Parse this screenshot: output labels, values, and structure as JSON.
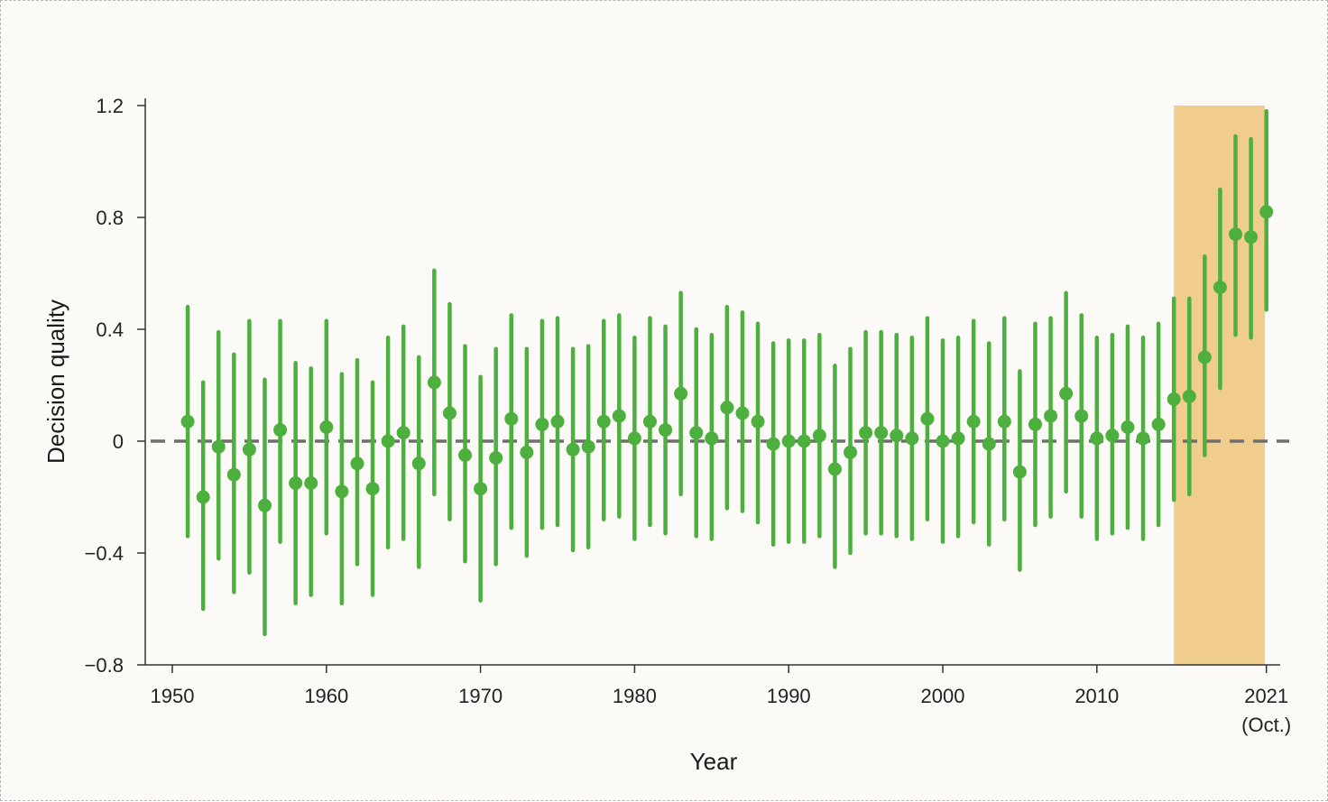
{
  "chart_data": {
    "type": "scatter",
    "title": "",
    "xlabel": "Year",
    "ylabel": "Decision quality",
    "xlim": [
      1948,
      2022.5
    ],
    "ylim": [
      -0.8,
      1.2
    ],
    "grid": false,
    "x_ticks": [
      {
        "value": 1950,
        "label": "1950"
      },
      {
        "value": 1960,
        "label": "1960"
      },
      {
        "value": 1970,
        "label": "1970"
      },
      {
        "value": 1980,
        "label": "1980"
      },
      {
        "value": 1990,
        "label": "1990"
      },
      {
        "value": 2000,
        "label": "2000"
      },
      {
        "value": 2010,
        "label": "2010"
      },
      {
        "value": 2021,
        "label": "2021",
        "sublabel": "(Oct.)"
      }
    ],
    "y_ticks": [
      {
        "value": 1.2,
        "label": "1.2"
      },
      {
        "value": 0.8,
        "label": "0.8"
      },
      {
        "value": 0.4,
        "label": "0.4"
      },
      {
        "value": 0,
        "label": "0"
      },
      {
        "value": -0.4,
        "label": "−0.4"
      },
      {
        "value": -0.8,
        "label": "−0.8"
      }
    ],
    "reference_line": {
      "y": 0,
      "style": "dashed",
      "color": "#6e6e6e"
    },
    "highlight_region": {
      "x_from": 2015,
      "x_to": 2020.9,
      "color": "#f0cd8c"
    },
    "marker_color": "#4caf3e",
    "series": [
      {
        "x": [
          1951,
          1952,
          1953,
          1954,
          1955,
          1956,
          1957,
          1958,
          1959,
          1960,
          1961,
          1962,
          1963,
          1964,
          1965,
          1966,
          1967,
          1968,
          1969,
          1970,
          1971,
          1972,
          1973,
          1974,
          1975,
          1976,
          1977,
          1978,
          1979,
          1980,
          1981,
          1982,
          1983,
          1984,
          1985,
          1986,
          1987,
          1988,
          1989,
          1990,
          1991,
          1992,
          1993,
          1994,
          1995,
          1996,
          1997,
          1998,
          1999,
          2000,
          2001,
          2002,
          2003,
          2004,
          2005,
          2006,
          2007,
          2008,
          2009,
          2010,
          2011,
          2012,
          2013,
          2014,
          2015,
          2016,
          2017,
          2018,
          2019,
          2020
        ],
        "y": [
          0.07,
          -0.2,
          -0.02,
          -0.12,
          -0.03,
          -0.23,
          0.04,
          -0.15,
          -0.15,
          0.05,
          -0.18,
          -0.08,
          -0.17,
          0.0,
          0.03,
          -0.08,
          0.21,
          0.1,
          -0.05,
          -0.17,
          -0.06,
          0.08,
          -0.04,
          0.06,
          0.07,
          -0.03,
          -0.02,
          0.07,
          0.09,
          0.01,
          0.07,
          0.04,
          0.17,
          0.03,
          0.01,
          0.12,
          0.1,
          0.07,
          -0.01,
          0.0,
          0.0,
          0.02,
          -0.1,
          -0.04,
          0.03,
          0.03,
          0.02,
          0.01,
          0.08,
          0.0,
          0.01,
          0.07,
          -0.01,
          0.07,
          -0.11,
          0.06,
          0.09,
          0.17,
          0.09,
          0.01,
          0.02,
          0.05,
          0.01,
          0.06,
          0.15,
          0.16,
          0.3,
          0.55,
          0.74,
          0.73
        ],
        "ci_low": [
          -0.34,
          -0.6,
          -0.42,
          -0.54,
          -0.47,
          -0.69,
          -0.36,
          -0.58,
          -0.55,
          -0.33,
          -0.58,
          -0.44,
          -0.55,
          -0.38,
          -0.35,
          -0.45,
          -0.19,
          -0.28,
          -0.43,
          -0.57,
          -0.44,
          -0.31,
          -0.41,
          -0.31,
          -0.3,
          -0.39,
          -0.38,
          -0.28,
          -0.27,
          -0.35,
          -0.3,
          -0.33,
          -0.19,
          -0.34,
          -0.35,
          -0.24,
          -0.25,
          -0.29,
          -0.37,
          -0.36,
          -0.36,
          -0.34,
          -0.45,
          -0.4,
          -0.33,
          -0.33,
          -0.34,
          -0.35,
          -0.28,
          -0.36,
          -0.34,
          -0.29,
          -0.37,
          -0.28,
          -0.46,
          -0.3,
          -0.27,
          -0.18,
          -0.27,
          -0.35,
          -0.33,
          -0.31,
          -0.35,
          -0.3,
          -0.21,
          -0.19,
          -0.05,
          0.19,
          0.38,
          0.37
        ],
        "ci_high": [
          0.48,
          0.21,
          0.39,
          0.31,
          0.43,
          0.22,
          0.43,
          0.28,
          0.26,
          0.43,
          0.24,
          0.29,
          0.21,
          0.37,
          0.41,
          0.3,
          0.61,
          0.49,
          0.34,
          0.23,
          0.33,
          0.45,
          0.33,
          0.43,
          0.44,
          0.33,
          0.34,
          0.43,
          0.45,
          0.37,
          0.44,
          0.41,
          0.53,
          0.4,
          0.38,
          0.48,
          0.46,
          0.42,
          0.35,
          0.36,
          0.36,
          0.38,
          0.27,
          0.33,
          0.39,
          0.39,
          0.38,
          0.37,
          0.44,
          0.36,
          0.37,
          0.43,
          0.35,
          0.44,
          0.25,
          0.42,
          0.44,
          0.53,
          0.45,
          0.37,
          0.38,
          0.41,
          0.37,
          0.42,
          0.51,
          0.51,
          0.66,
          0.9,
          1.09,
          1.08
        ]
      },
      {
        "x": [
          2021
        ],
        "y": [
          0.82
        ],
        "ci_low": [
          0.47
        ],
        "ci_high": [
          1.18
        ]
      }
    ]
  }
}
